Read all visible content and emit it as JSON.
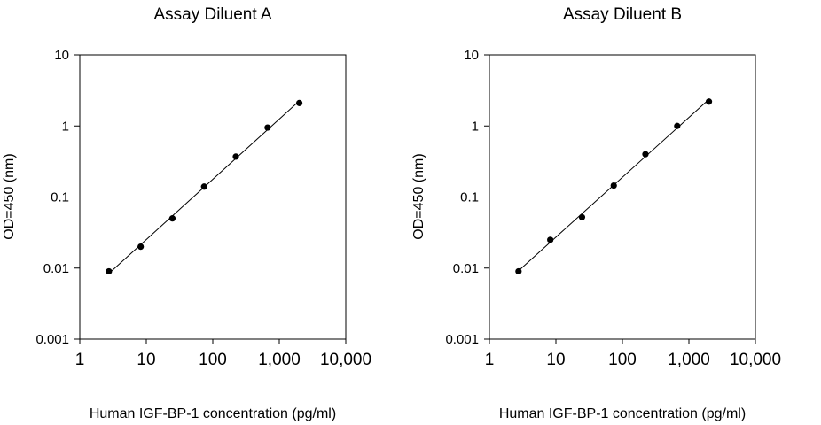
{
  "chart_data": [
    {
      "type": "scatter",
      "title": "Assay Diluent A",
      "xlabel": "Human IGF-BP-1 concentration (pg/ml)",
      "ylabel": "OD=450 (nm)",
      "xscale": "log",
      "yscale": "log",
      "xlim": [
        1,
        10000
      ],
      "ylim": [
        0.001,
        10
      ],
      "xticks": [
        "1",
        "10",
        "100",
        "1,000",
        "10,000"
      ],
      "yticks": [
        "0.001",
        "0.01",
        "0.1",
        "1",
        "10"
      ],
      "grid": false,
      "fit_line": true,
      "color": "#000000",
      "x": [
        2.74,
        8.23,
        24.7,
        74.1,
        222,
        667,
        2000
      ],
      "y": [
        0.009,
        0.02,
        0.05,
        0.14,
        0.37,
        0.95,
        2.1
      ]
    },
    {
      "type": "scatter",
      "title": "Assay Diluent B",
      "xlabel": "Human IGF-BP-1 concentration (pg/ml)",
      "ylabel": "OD=450 (nm)",
      "xscale": "log",
      "yscale": "log",
      "xlim": [
        1,
        10000
      ],
      "ylim": [
        0.001,
        10
      ],
      "xticks": [
        "1",
        "10",
        "100",
        "1,000",
        "10,000"
      ],
      "yticks": [
        "0.001",
        "0.01",
        "0.1",
        "1",
        "10"
      ],
      "grid": false,
      "fit_line": true,
      "color": "#000000",
      "x": [
        2.74,
        8.23,
        24.7,
        74.1,
        222,
        667,
        2000
      ],
      "y": [
        0.009,
        0.025,
        0.052,
        0.145,
        0.4,
        1.0,
        2.2
      ]
    }
  ]
}
